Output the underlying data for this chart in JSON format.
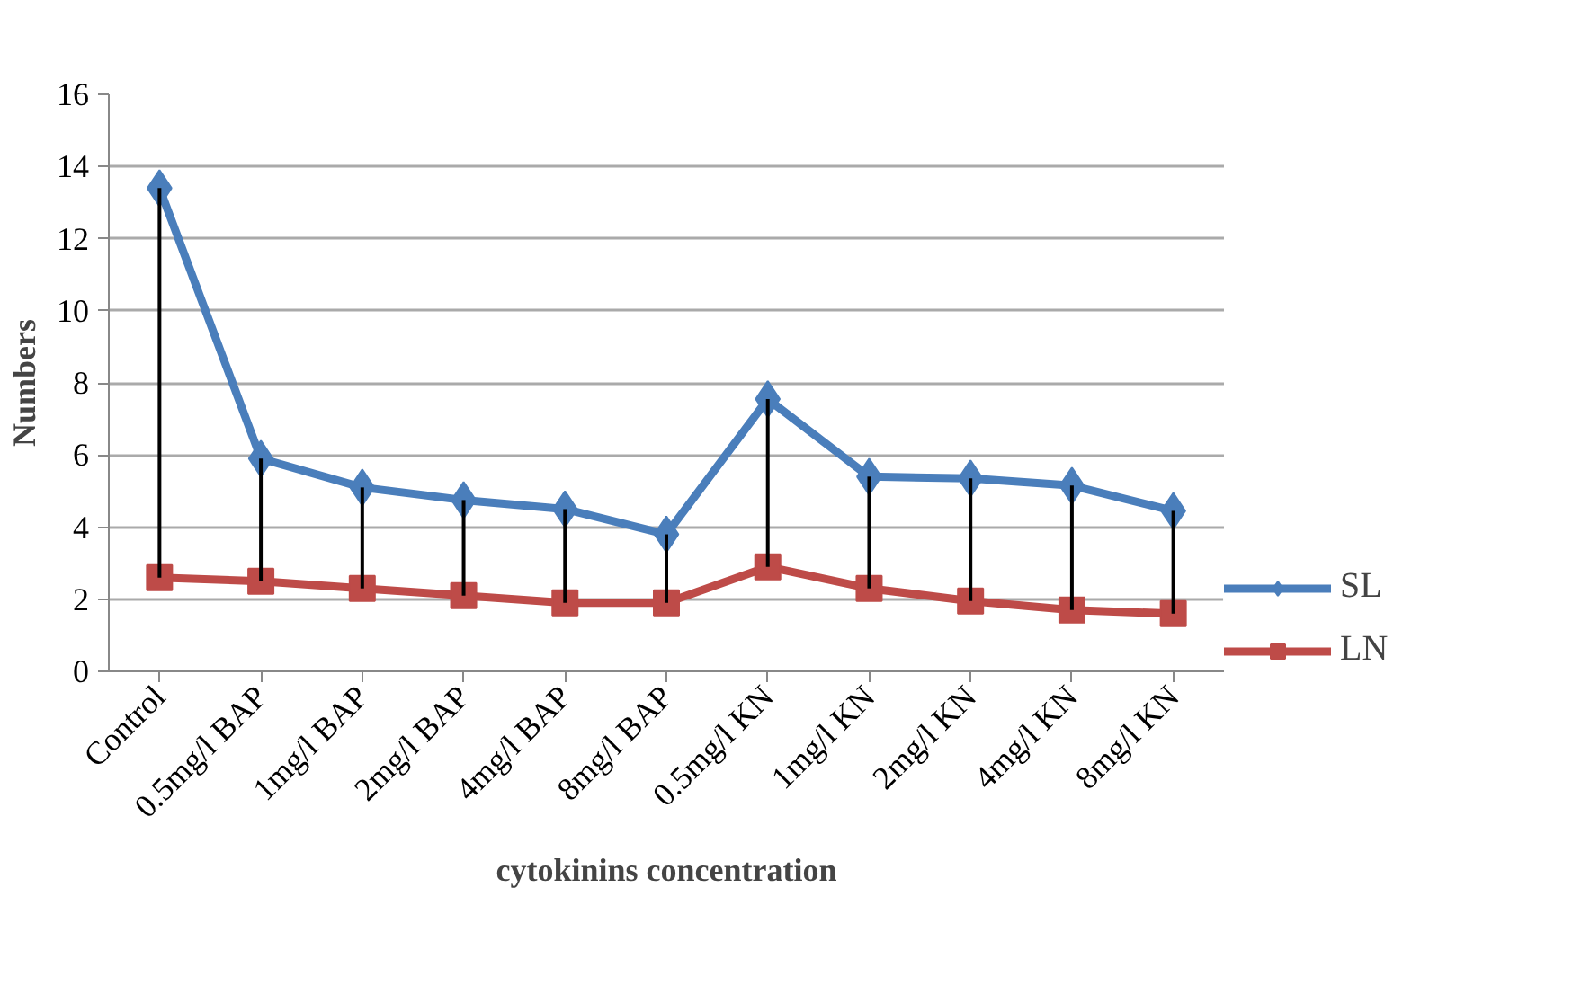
{
  "chart_data": {
    "type": "line",
    "xlabel": "cytokinins concentration",
    "ylabel": "Numbers",
    "categories": [
      "Control",
      "0.5mg/l BAP",
      "1mg/l BAP",
      "2mg/l BAP",
      "4mg/l BAP",
      "8mg/l BAP",
      "0.5mg/l KN",
      "1mg/l KN",
      "2mg/l KN",
      "4mg/l KN",
      "8mg/l KN"
    ],
    "series": [
      {
        "name": "SL",
        "color": "#4a7ebb",
        "marker": "diamond",
        "values": [
          13.4,
          5.9,
          5.1,
          4.75,
          4.5,
          3.8,
          7.55,
          5.4,
          5.35,
          5.15,
          4.45
        ],
        "errors": [
          [
            2.6,
            13.4
          ],
          [
            2.5,
            5.9
          ],
          [
            2.3,
            5.1
          ],
          [
            2.1,
            4.75
          ],
          [
            1.9,
            4.5
          ],
          [
            1.9,
            3.8
          ],
          [
            2.9,
            7.55
          ],
          [
            2.3,
            5.4
          ],
          [
            1.95,
            5.35
          ],
          [
            1.7,
            5.15
          ],
          [
            1.6,
            4.45
          ]
        ]
      },
      {
        "name": "LN",
        "color": "#be4b48",
        "marker": "square",
        "values": [
          2.6,
          2.5,
          2.3,
          2.1,
          1.9,
          1.9,
          2.9,
          2.3,
          1.95,
          1.7,
          1.6
        ]
      }
    ],
    "ylim": [
      0,
      16
    ],
    "yticks": [
      0,
      2,
      4,
      6,
      8,
      10,
      12,
      14,
      16
    ],
    "grid": "y",
    "legend": "right",
    "line_style": "solid"
  }
}
